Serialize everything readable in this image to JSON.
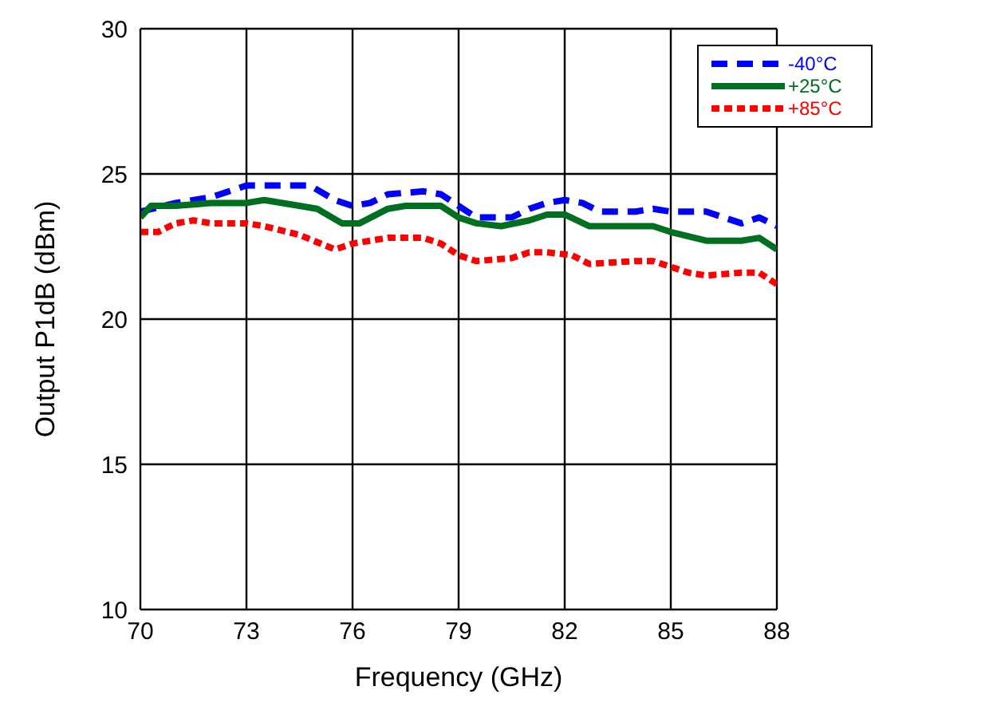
{
  "chart_data": {
    "type": "line",
    "xlabel": "Frequency (GHz)",
    "ylabel": "Output P1dB (dBm)",
    "xlim": [
      70,
      88
    ],
    "xticks": [
      70,
      73,
      76,
      79,
      82,
      85,
      88
    ],
    "ylim": [
      10,
      30
    ],
    "yticks": [
      10,
      15,
      20,
      25,
      30
    ],
    "grid": true,
    "legend": "top right",
    "series": [
      {
        "name": "-40°C",
        "color": "#0000ff",
        "line_style": "dashed",
        "x": [
          70,
          71,
          72,
          73,
          74,
          74.8,
          75.5,
          76,
          76.5,
          77,
          78,
          78.5,
          79,
          79.5,
          80.5,
          81,
          81.5,
          82,
          82.5,
          83,
          84,
          84.5,
          85,
          86,
          86.5,
          87,
          87.5,
          88
        ],
        "values": [
          23.7,
          24.0,
          24.2,
          24.6,
          24.6,
          24.6,
          24.1,
          23.9,
          24.0,
          24.3,
          24.4,
          24.3,
          23.9,
          23.5,
          23.5,
          23.8,
          24.0,
          24.1,
          24.0,
          23.7,
          23.7,
          23.8,
          23.7,
          23.7,
          23.5,
          23.3,
          23.5,
          23.2
        ]
      },
      {
        "name": "+25°C",
        "color": "#006f1f",
        "line_style": "solid",
        "x": [
          70,
          70.3,
          71,
          72,
          73,
          73.5,
          74.5,
          75,
          75.7,
          76.2,
          77,
          77.5,
          78.5,
          79,
          79.5,
          80.2,
          81,
          81.5,
          82,
          82.7,
          84.5,
          85,
          86,
          87,
          87.5,
          88
        ],
        "values": [
          23.5,
          23.9,
          23.9,
          24.0,
          24.0,
          24.1,
          23.9,
          23.8,
          23.3,
          23.3,
          23.8,
          23.9,
          23.9,
          23.5,
          23.3,
          23.2,
          23.4,
          23.6,
          23.6,
          23.2,
          23.2,
          23.0,
          22.7,
          22.7,
          22.8,
          22.4
        ]
      },
      {
        "name": "+85°C",
        "color": "#ff0000",
        "line_style": "dotted",
        "x": [
          70,
          70.5,
          71,
          71.5,
          72,
          73,
          73.5,
          74.5,
          75.5,
          76,
          77,
          78,
          78.5,
          79,
          79.5,
          80.5,
          81,
          81.5,
          82.2,
          82.7,
          84,
          84.5,
          85.5,
          86,
          87,
          87.5,
          88
        ],
        "values": [
          23.0,
          23.0,
          23.3,
          23.4,
          23.3,
          23.3,
          23.2,
          22.9,
          22.4,
          22.6,
          22.8,
          22.8,
          22.6,
          22.2,
          22.0,
          22.1,
          22.3,
          22.3,
          22.2,
          21.9,
          22.0,
          22.0,
          21.6,
          21.5,
          21.6,
          21.6,
          21.2
        ]
      }
    ]
  }
}
